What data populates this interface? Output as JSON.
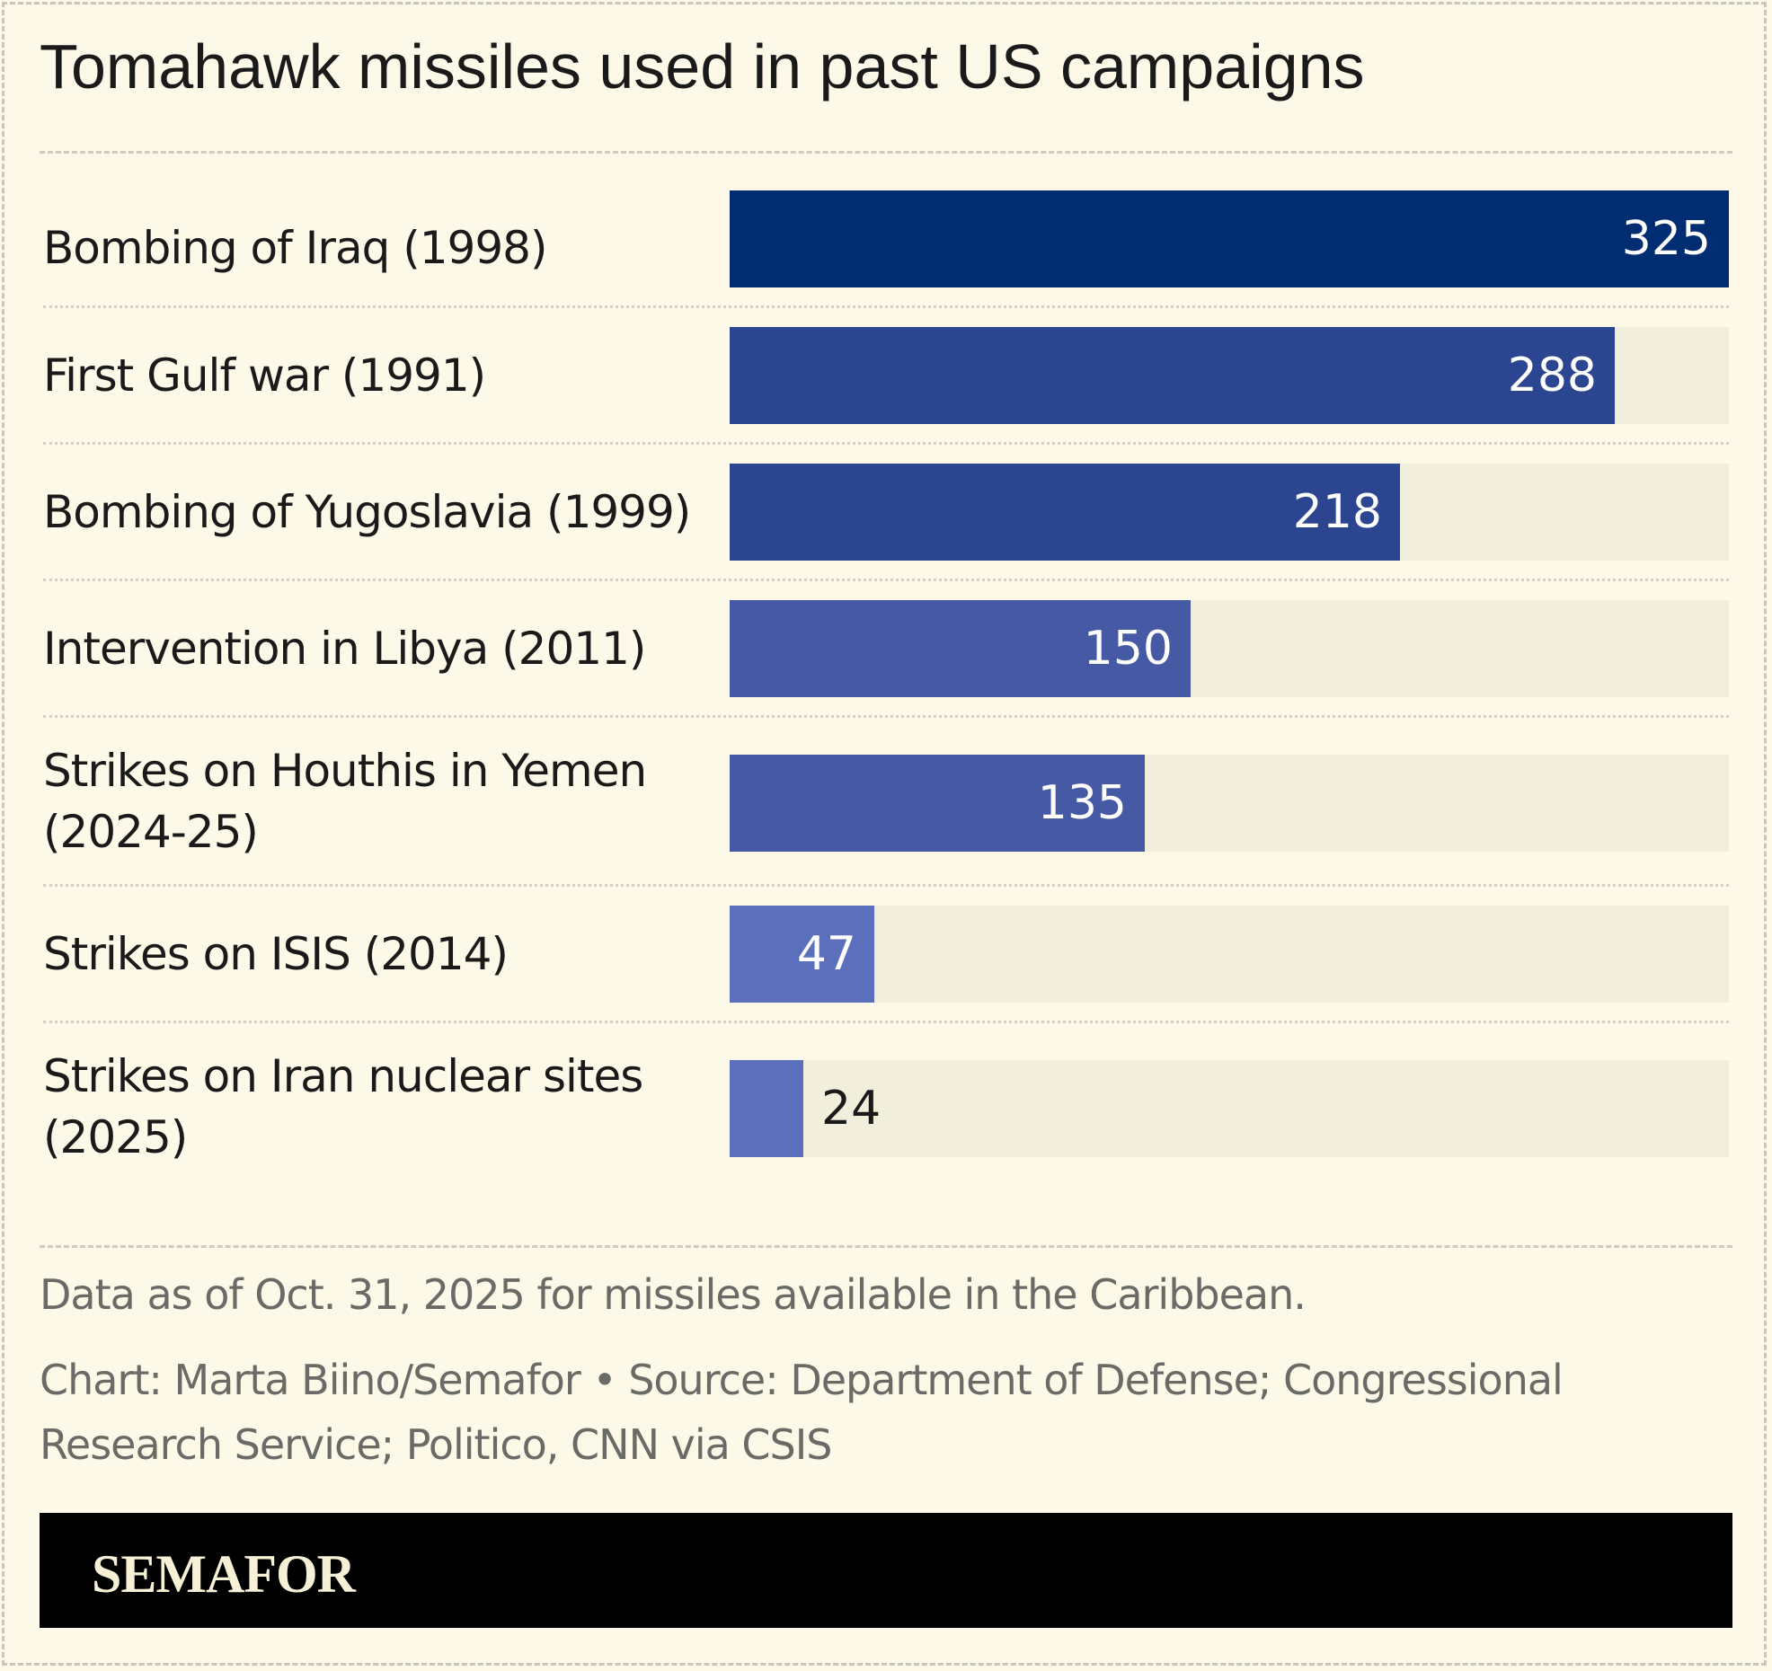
{
  "title": "Tomahawk missiles used in past US campaigns",
  "chart_data": {
    "type": "bar",
    "orientation": "horizontal",
    "categories": [
      "Bombing of Iraq (1998)",
      "First Gulf war (1991)",
      "Bombing of Yugoslavia (1999)",
      "Intervention in Libya (2011)",
      "Strikes on Houthis in Yemen (2024-25)",
      "Strikes on ISIS (2014)",
      "Strikes on Iran nuclear sites (2025)"
    ],
    "values": [
      325,
      288,
      218,
      150,
      135,
      47,
      24
    ],
    "value_labels": [
      "325",
      "288",
      "218",
      "150",
      "135",
      "47",
      "24"
    ],
    "xlim": [
      0,
      325
    ],
    "colors": [
      "#002d72",
      "#2b4590",
      "#2b4590",
      "#4559a5",
      "#4559a5",
      "#5b6fbc",
      "#5b6fbc"
    ],
    "track_color": "#f1eedb",
    "grid": false,
    "legend": "none"
  },
  "note": "Data as of Oct. 31, 2025 for missiles available in the Caribbean.",
  "credit": "Chart: Marta Biino/Semafor • Source: Department of Defense; Congressional Research Service; Politico, CNN via CSIS",
  "brand": "SEMAFOR"
}
